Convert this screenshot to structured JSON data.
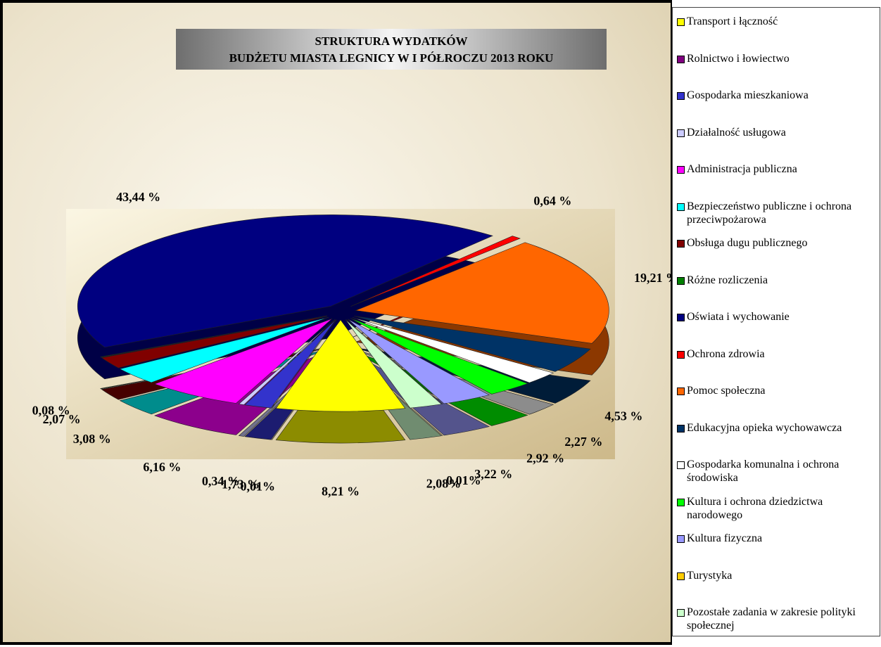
{
  "chart_data": {
    "type": "pie",
    "title": "STRUKTURA WYDATKÓW",
    "subtitle": "BUDŻETU MIASTA LEGNICY W I PÓŁROCZU  2013 ROKU",
    "categories": [
      "Transport i łączność",
      "Rolnictwo i łowiectwo",
      "Gospodarka mieszkaniowa",
      "Działalność usługowa",
      "Administracja publiczna",
      "Bezpieczeństwo publiczne i ochrona przeciwpożarowa",
      "Obsługa dugu publicznego",
      "Różne rozliczenia",
      "Oświata i wychowanie",
      "Ochrona zdrowia",
      "Pomoc społeczna",
      "Edukacyjna opieka wychowawcza",
      "Gospodarka komunalna i ochrona środowiska",
      "Kultura i ochrona dziedzictwa narodowego",
      "Kultura fizyczna",
      "Turystyka",
      "Pozostałe zadania w zakresie polityki społecznej"
    ],
    "values": [
      8.21,
      0.01,
      1.73,
      0.34,
      6.16,
      3.08,
      2.07,
      0.08,
      43.44,
      0.64,
      19.21,
      4.53,
      2.27,
      2.92,
      3.22,
      0.01,
      2.08
    ],
    "value_labels": [
      "8,21 %",
      "0,01%",
      "1,73 %",
      "0,34 %",
      "6,16 %",
      "3,08 %",
      "2,07 %",
      "0,08 %",
      "43,44 %",
      "0,64 %",
      "19,21 %",
      "4,53 %",
      "2,27  %",
      "2,92 %",
      "3,22 %",
      "0,01%",
      "2,08%"
    ],
    "colors": [
      "#ffff00",
      "#800080",
      "#3333cc",
      "#ccccff",
      "#ff00ff",
      "#00ffff",
      "#800000",
      "#008000",
      "#000080",
      "#ff0000",
      "#ff6600",
      "#003366",
      "#ffffff",
      "#00ff00",
      "#9999ff",
      "#ffcc00",
      "#ccffcc"
    ],
    "legend": "right"
  }
}
